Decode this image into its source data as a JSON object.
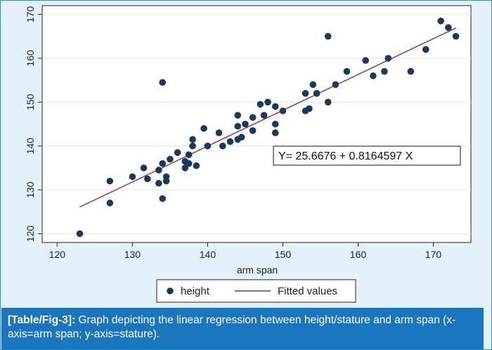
{
  "chart_data": {
    "type": "scatter",
    "xlabel": "arm span",
    "ylabel": "",
    "xlim": [
      118,
      175
    ],
    "ylim": [
      118,
      172
    ],
    "xticks": [
      120,
      130,
      140,
      150,
      160,
      170
    ],
    "yticks": [
      120,
      130,
      140,
      150,
      160,
      170
    ],
    "grid": true,
    "series": [
      {
        "name": "height",
        "type": "scatter",
        "color": "#1a3a5c",
        "points": [
          [
            123,
            120
          ],
          [
            127,
            132
          ],
          [
            127,
            127
          ],
          [
            130,
            133
          ],
          [
            131.5,
            135
          ],
          [
            132,
            132.5
          ],
          [
            133.5,
            134.5
          ],
          [
            133.5,
            131.5
          ],
          [
            134,
            154.5
          ],
          [
            134,
            136
          ],
          [
            134,
            128
          ],
          [
            134.5,
            133
          ],
          [
            134.5,
            132
          ],
          [
            135,
            137
          ],
          [
            136,
            138.5
          ],
          [
            137,
            135
          ],
          [
            137,
            136.5
          ],
          [
            137.5,
            136
          ],
          [
            137.5,
            138
          ],
          [
            138,
            141.5
          ],
          [
            138,
            140
          ],
          [
            138.5,
            135.5
          ],
          [
            139.5,
            144
          ],
          [
            140,
            140
          ],
          [
            141.5,
            143
          ],
          [
            142,
            140
          ],
          [
            143,
            141
          ],
          [
            144,
            147
          ],
          [
            144,
            144.5
          ],
          [
            144,
            141.5
          ],
          [
            144.5,
            142
          ],
          [
            145,
            145
          ],
          [
            146,
            146.5
          ],
          [
            146,
            143.5
          ],
          [
            147,
            149.5
          ],
          [
            147.5,
            147
          ],
          [
            148,
            150
          ],
          [
            149,
            149
          ],
          [
            149,
            145
          ],
          [
            149,
            143
          ],
          [
            150,
            148
          ],
          [
            153,
            152
          ],
          [
            153,
            148
          ],
          [
            153.5,
            148.5
          ],
          [
            154,
            154
          ],
          [
            154.5,
            152
          ],
          [
            156,
            165
          ],
          [
            156,
            150
          ],
          [
            157,
            154
          ],
          [
            158.5,
            157
          ],
          [
            161,
            159.5
          ],
          [
            162,
            156
          ],
          [
            163.5,
            157
          ],
          [
            164,
            160
          ],
          [
            167,
            157
          ],
          [
            169,
            162
          ],
          [
            171,
            168.5
          ],
          [
            172,
            167
          ],
          [
            173,
            165
          ]
        ]
      },
      {
        "name": "Fitted values",
        "type": "line",
        "color": "#a52a2a",
        "points": [
          [
            123,
            126.09
          ],
          [
            173,
            166.91
          ]
        ]
      }
    ],
    "annotation": "Y= 25.6676 +  0.8164597 X",
    "legend": [
      "height",
      "Fitted values"
    ],
    "legend_position": "bottom"
  },
  "caption": {
    "lead": "[Table/Fig-3]:",
    "text": " Graph depicting the linear regression between height/stature and arm span (x-axis=arm span; y-axis=stature)."
  }
}
